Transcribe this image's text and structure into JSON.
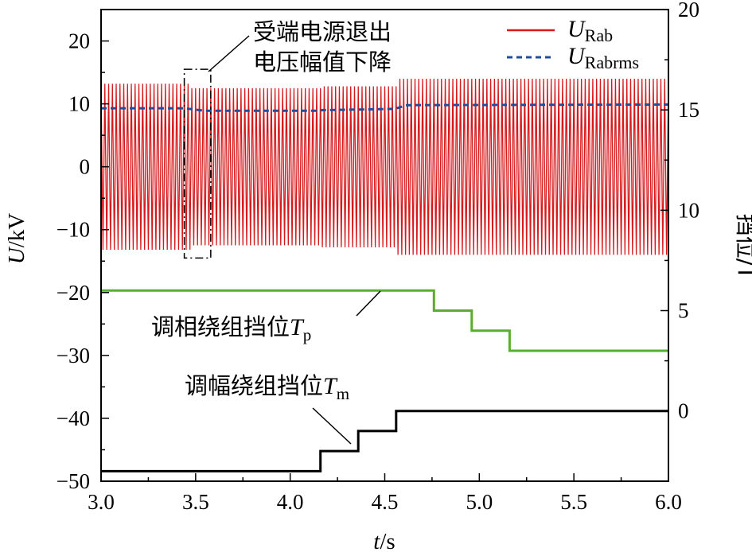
{
  "chart_data": {
    "type": "line",
    "x_axis": {
      "label_var": "t",
      "label_unit": "/s",
      "range": [
        3.0,
        6.0
      ],
      "ticks": [
        3.0,
        3.5,
        4.0,
        4.5,
        5.0,
        5.5,
        6.0
      ],
      "tick_labels": [
        "3.0",
        "3.5",
        "4.0",
        "4.5",
        "5.0",
        "5.5",
        "6.0"
      ]
    },
    "y_left": {
      "label_var": "U",
      "label_unit": "/kV",
      "range": [
        -50,
        25
      ],
      "ticks": [
        -50,
        -40,
        -30,
        -20,
        -10,
        0,
        10,
        20
      ],
      "tick_labels": [
        "−50",
        "−40",
        "−30",
        "−20",
        "−10",
        "0",
        "10",
        "20"
      ]
    },
    "y_right": {
      "label": "挡位/T",
      "range": [
        -3.5,
        20
      ],
      "ticks": [
        0,
        5,
        10,
        15,
        20
      ],
      "tick_labels": [
        "0",
        "5",
        "10",
        "15",
        "20"
      ]
    },
    "legend": {
      "position": "top-right",
      "entries": [
        {
          "symbol": "U",
          "subscript": "Rab",
          "color": "#d7191c",
          "style": "solid"
        },
        {
          "symbol": "U",
          "subscript": "Rabrms",
          "color": "#1f4e9c",
          "style": "dashed"
        }
      ]
    },
    "series": [
      {
        "id": "u_rab",
        "axis": "left",
        "kind": "ac_waveform",
        "color": "#d7191c",
        "cycles_per_second": 50,
        "amplitude_kv": [
          [
            3.0,
            13.2
          ],
          [
            3.47,
            13.2
          ],
          [
            3.47,
            12.5
          ],
          [
            4.17,
            12.5
          ],
          [
            4.17,
            12.8
          ],
          [
            4.57,
            12.8
          ],
          [
            4.57,
            14.0
          ],
          [
            6.0,
            14.0
          ]
        ]
      },
      {
        "id": "u_rabrms",
        "axis": "left",
        "kind": "line",
        "color": "#1f4e9c",
        "dashed": true,
        "points": [
          [
            3.0,
            9.3
          ],
          [
            3.44,
            9.3
          ],
          [
            3.55,
            8.9
          ],
          [
            4.15,
            8.9
          ],
          [
            4.17,
            9.0
          ],
          [
            4.55,
            9.2
          ],
          [
            4.62,
            9.8
          ],
          [
            6.0,
            9.9
          ]
        ]
      },
      {
        "id": "tp",
        "axis": "right",
        "kind": "step",
        "color": "#5aae2e",
        "points": [
          [
            3.0,
            6
          ],
          [
            4.76,
            6
          ],
          [
            4.76,
            5
          ],
          [
            4.96,
            5
          ],
          [
            4.96,
            4
          ],
          [
            5.16,
            4
          ],
          [
            5.16,
            3
          ],
          [
            6.0,
            3
          ]
        ]
      },
      {
        "id": "tm",
        "axis": "right",
        "kind": "step",
        "color": "#000000",
        "points": [
          [
            3.0,
            -3
          ],
          [
            4.16,
            -3
          ],
          [
            4.16,
            -2
          ],
          [
            4.36,
            -2
          ],
          [
            4.36,
            -1
          ],
          [
            4.56,
            -1
          ],
          [
            4.56,
            0
          ],
          [
            6.0,
            0
          ]
        ]
      }
    ],
    "annotations": {
      "event_line1": "受端电源退出",
      "event_line2": "电压幅值下降",
      "event_box_x": [
        3.44,
        3.58
      ],
      "tp_label": "调相绕组挡位",
      "tp_symbol": "T",
      "tp_sub": "p",
      "tm_label": "调幅绕组挡位",
      "tm_symbol": "T",
      "tm_sub": "m"
    }
  }
}
